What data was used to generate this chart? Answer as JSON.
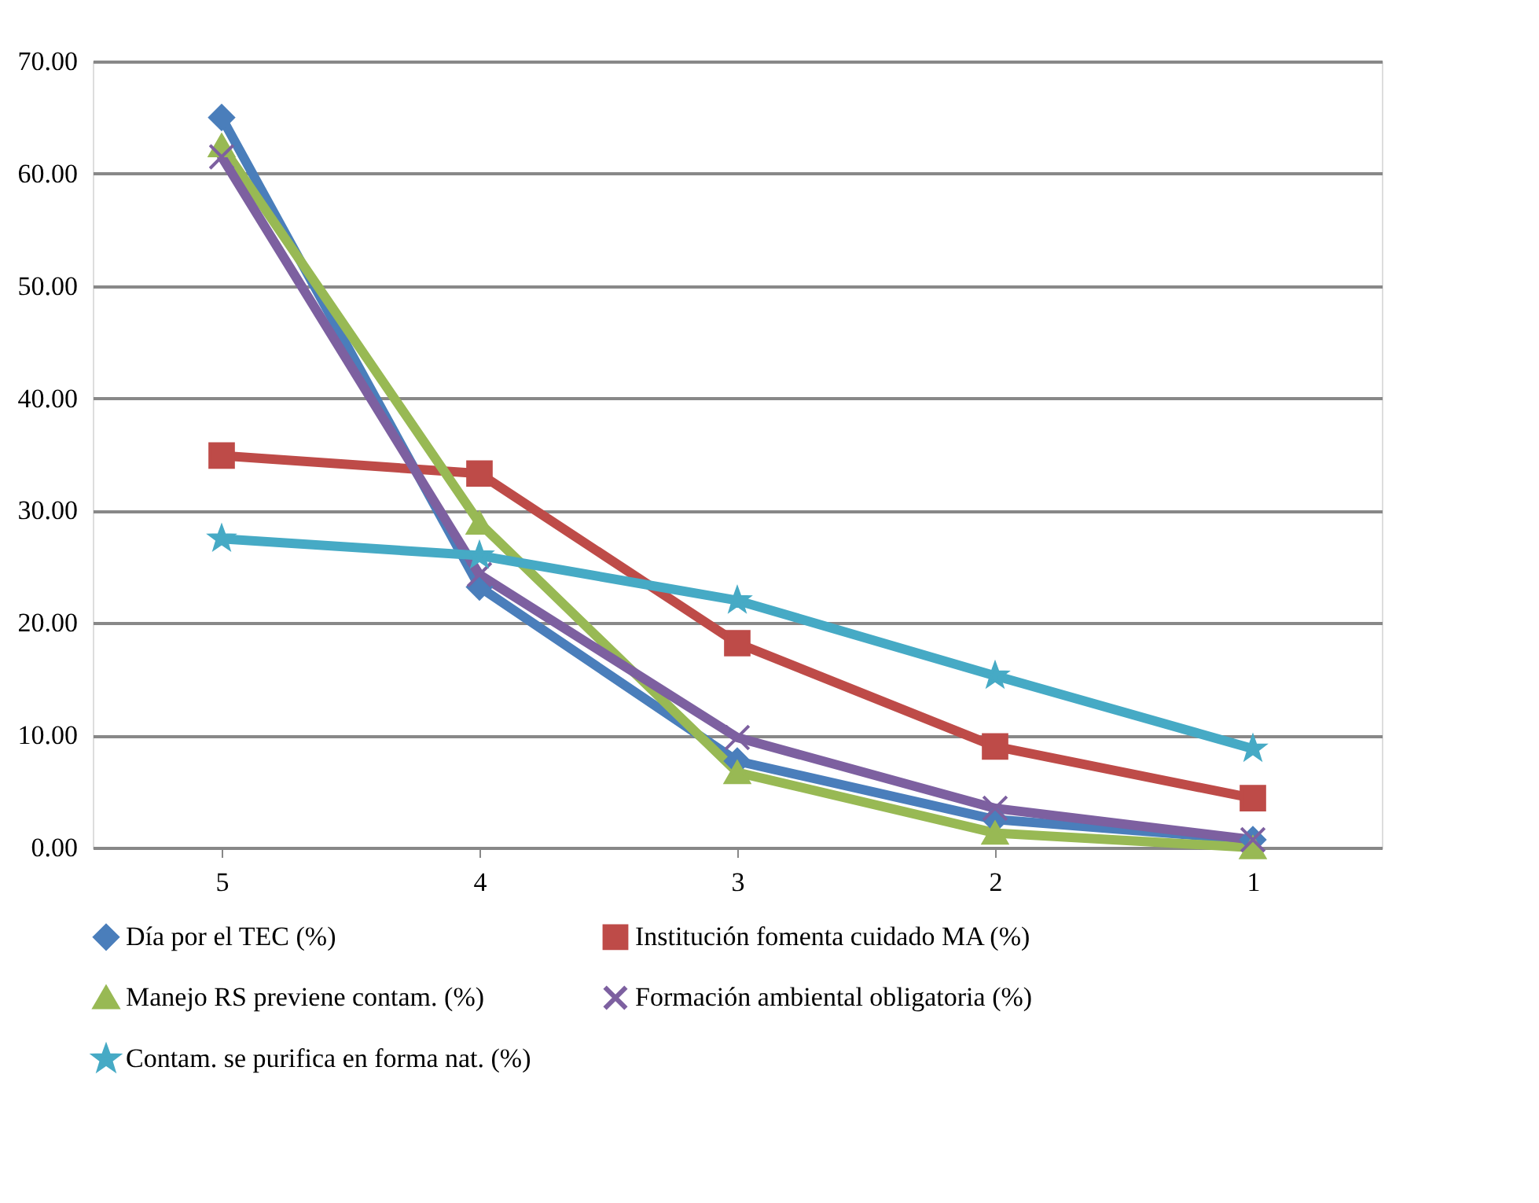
{
  "chart_data": {
    "type": "line",
    "categories": [
      "5",
      "4",
      "3",
      "2",
      "1"
    ],
    "series": [
      {
        "name": "Día por el TEC (%)",
        "color": "#4a7ebb",
        "marker": "diamond",
        "values": [
          65.0,
          23.2,
          7.7,
          2.5,
          0.7
        ]
      },
      {
        "name": "Institución fomenta cuidado MA (%)",
        "color": "#be4b48",
        "marker": "square",
        "values": [
          34.9,
          33.3,
          18.2,
          9.0,
          4.4
        ]
      },
      {
        "name": "Manejo RS previene contam. (%)",
        "color": "#98b954",
        "marker": "triangle",
        "values": [
          62.5,
          28.9,
          6.7,
          1.3,
          0.0
        ]
      },
      {
        "name": "Formación ambiental obligatoria (%)",
        "color": "#7d60a0",
        "marker": "cross",
        "values": [
          61.5,
          24.3,
          9.8,
          3.5,
          0.7
        ]
      },
      {
        "name": "Contam. se purifica en forma nat. (%)",
        "color": "#46aac5",
        "marker": "star",
        "values": [
          27.5,
          26.0,
          22.0,
          15.3,
          8.8
        ]
      }
    ],
    "ylim": [
      0,
      70
    ],
    "yticks": [
      {
        "value": 0,
        "label": "0.00"
      },
      {
        "value": 10,
        "label": "10.00"
      },
      {
        "value": 20,
        "label": "20.00"
      },
      {
        "value": 30,
        "label": "30.00"
      },
      {
        "value": 40,
        "label": "40.00"
      },
      {
        "value": 50,
        "label": "50.00"
      },
      {
        "value": 60,
        "label": "60.00"
      },
      {
        "value": 70,
        "label": "70.00"
      }
    ],
    "grid": "y",
    "legend": "bottom",
    "line_style": "solid"
  }
}
